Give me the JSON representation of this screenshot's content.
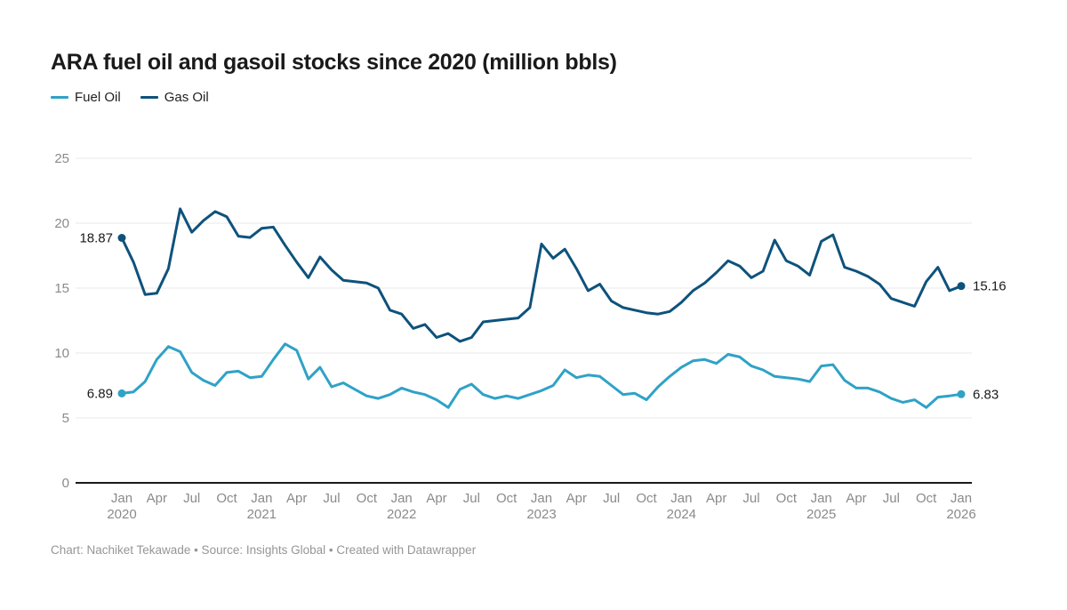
{
  "title": "ARA fuel oil and gasoil stocks since 2020 (million bbls)",
  "legend": [
    {
      "label": "Fuel Oil",
      "color": "#2fa2c7"
    },
    {
      "label": "Gas Oil",
      "color": "#0e527c"
    }
  ],
  "footer": "Chart: Nachiket Tekawade • Source: Insights Global • Created with Datawrapper",
  "colors": {
    "fuel_oil": "#2fa2c7",
    "gas_oil": "#0e527c",
    "gridline": "#e8e8e8",
    "axis_line": "#1a1a1a",
    "tick_text": "#8a8a8a",
    "value_text": "#1a1a1a"
  },
  "chart_data": {
    "type": "line",
    "title": "ARA fuel oil and gasoil stocks since 2020 (million bbls)",
    "ylim": [
      0,
      25
    ],
    "yticks": [
      0,
      5,
      10,
      15,
      20,
      25
    ],
    "grid": "horizontal",
    "legend_position": "top-left",
    "x": [
      "2020-01",
      "2020-02",
      "2020-03",
      "2020-04",
      "2020-05",
      "2020-06",
      "2020-07",
      "2020-08",
      "2020-09",
      "2020-10",
      "2020-11",
      "2020-12",
      "2021-01",
      "2021-02",
      "2021-03",
      "2021-04",
      "2021-05",
      "2021-06",
      "2021-07",
      "2021-08",
      "2021-09",
      "2021-10",
      "2021-11",
      "2021-12",
      "2022-01",
      "2022-02",
      "2022-03",
      "2022-04",
      "2022-05",
      "2022-06",
      "2022-07",
      "2022-08",
      "2022-09",
      "2022-10",
      "2022-11",
      "2022-12",
      "2023-01",
      "2023-02",
      "2023-03",
      "2023-04",
      "2023-05",
      "2023-06",
      "2023-07",
      "2023-08",
      "2023-09",
      "2023-10",
      "2023-11",
      "2023-12",
      "2024-01",
      "2024-02",
      "2024-03",
      "2024-04",
      "2024-05",
      "2024-06",
      "2024-07",
      "2024-08",
      "2024-09",
      "2024-10",
      "2024-11",
      "2024-12",
      "2025-01",
      "2025-02",
      "2025-03",
      "2025-04",
      "2025-05",
      "2025-06",
      "2025-07",
      "2025-08",
      "2025-09",
      "2025-10",
      "2025-11",
      "2025-12",
      "2026-01"
    ],
    "series": [
      {
        "name": "Fuel Oil",
        "color": "#2fa2c7",
        "values": [
          6.89,
          7.0,
          7.8,
          9.5,
          10.5,
          10.1,
          8.5,
          7.9,
          7.5,
          8.5,
          8.6,
          8.1,
          8.2,
          9.5,
          10.7,
          10.2,
          8.0,
          8.9,
          7.4,
          7.7,
          7.2,
          6.7,
          6.5,
          6.8,
          7.3,
          7.0,
          6.8,
          6.4,
          5.8,
          7.2,
          7.6,
          6.8,
          6.5,
          6.7,
          6.5,
          6.8,
          7.1,
          7.5,
          8.7,
          8.1,
          8.3,
          8.2,
          7.5,
          6.8,
          6.9,
          6.4,
          7.4,
          8.2,
          8.9,
          9.4,
          9.5,
          9.2,
          9.9,
          9.7,
          9.0,
          8.7,
          8.2,
          8.1,
          8.0,
          7.8,
          9.0,
          9.1,
          7.9,
          7.3,
          7.3,
          7.0,
          6.5,
          6.2,
          6.4,
          5.8,
          6.6,
          6.7,
          6.83
        ]
      },
      {
        "name": "Gas Oil",
        "color": "#0e527c",
        "values": [
          18.87,
          17.0,
          14.5,
          14.6,
          16.5,
          21.1,
          19.3,
          20.2,
          20.9,
          20.5,
          19.0,
          18.9,
          19.6,
          19.7,
          18.3,
          17.0,
          15.8,
          17.4,
          16.4,
          15.6,
          15.5,
          15.4,
          15.0,
          13.3,
          13.0,
          11.9,
          12.2,
          11.2,
          11.5,
          10.9,
          11.2,
          12.4,
          12.5,
          12.6,
          12.7,
          13.5,
          18.4,
          17.3,
          18.0,
          16.5,
          14.8,
          15.3,
          14.0,
          13.5,
          13.3,
          13.1,
          13.0,
          13.2,
          13.9,
          14.8,
          15.4,
          16.2,
          17.1,
          16.7,
          15.8,
          16.3,
          18.7,
          17.1,
          16.7,
          16.0,
          18.6,
          19.1,
          16.6,
          16.3,
          15.9,
          15.3,
          14.2,
          13.9,
          13.6,
          15.5,
          16.6,
          14.8,
          15.16
        ]
      }
    ],
    "xticks": [
      {
        "i": 0,
        "label": "Jan",
        "year": "2020"
      },
      {
        "i": 3,
        "label": "Apr"
      },
      {
        "i": 6,
        "label": "Jul"
      },
      {
        "i": 9,
        "label": "Oct"
      },
      {
        "i": 12,
        "label": "Jan",
        "year": "2021"
      },
      {
        "i": 15,
        "label": "Apr"
      },
      {
        "i": 18,
        "label": "Jul"
      },
      {
        "i": 21,
        "label": "Oct"
      },
      {
        "i": 24,
        "label": "Jan",
        "year": "2022"
      },
      {
        "i": 27,
        "label": "Apr"
      },
      {
        "i": 30,
        "label": "Jul"
      },
      {
        "i": 33,
        "label": "Oct"
      },
      {
        "i": 36,
        "label": "Jan",
        "year": "2023"
      },
      {
        "i": 39,
        "label": "Apr"
      },
      {
        "i": 42,
        "label": "Jul"
      },
      {
        "i": 45,
        "label": "Oct"
      },
      {
        "i": 48,
        "label": "Jan",
        "year": "2024"
      },
      {
        "i": 51,
        "label": "Apr"
      },
      {
        "i": 54,
        "label": "Jul"
      },
      {
        "i": 57,
        "label": "Oct"
      },
      {
        "i": 60,
        "label": "Jan",
        "year": "2025"
      },
      {
        "i": 63,
        "label": "Apr"
      },
      {
        "i": 66,
        "label": "Jul"
      },
      {
        "i": 69,
        "label": "Oct"
      },
      {
        "i": 72,
        "label": "Jan",
        "year": "2026"
      }
    ],
    "point_labels": [
      {
        "series": "Gas Oil",
        "position": "start",
        "text": "18.87"
      },
      {
        "series": "Gas Oil",
        "position": "end",
        "text": "15.16"
      },
      {
        "series": "Fuel Oil",
        "position": "start",
        "text": "6.89"
      },
      {
        "series": "Fuel Oil",
        "position": "end",
        "text": "6.83"
      }
    ]
  }
}
